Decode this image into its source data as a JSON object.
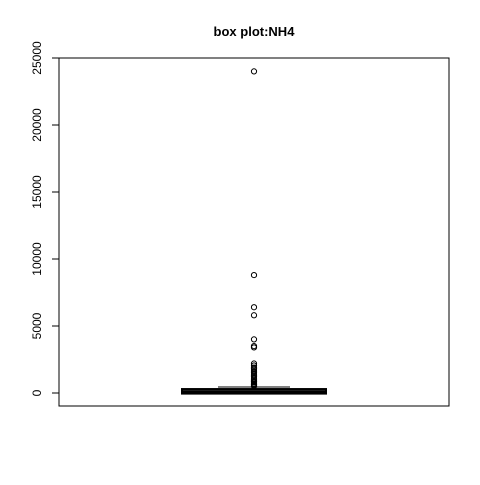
{
  "chart_data": {
    "type": "box",
    "title": "box plot:NH4",
    "xlabel": "",
    "ylabel": "",
    "ylim": [
      -1000,
      25000
    ],
    "yticks": [
      0,
      5000,
      10000,
      15000,
      20000,
      25000
    ],
    "ytick_labels": [
      "0",
      "5000",
      "10000",
      "15000",
      "20000",
      "25000"
    ],
    "grid": false,
    "legend": "none",
    "box": {
      "min": 0,
      "q1": 30,
      "median": 100,
      "q3": 220,
      "whisker_high": 450
    },
    "outliers": [
      24000,
      8800,
      6400,
      5800,
      4000,
      3500,
      3400,
      2200,
      2050,
      1900,
      1800,
      1700,
      1600,
      1500,
      1400,
      1300,
      1200,
      1100,
      1000,
      900,
      850,
      800,
      700,
      650,
      600,
      550,
      500
    ],
    "colors": {
      "stroke": "#000000",
      "background": "#ffffff"
    }
  }
}
